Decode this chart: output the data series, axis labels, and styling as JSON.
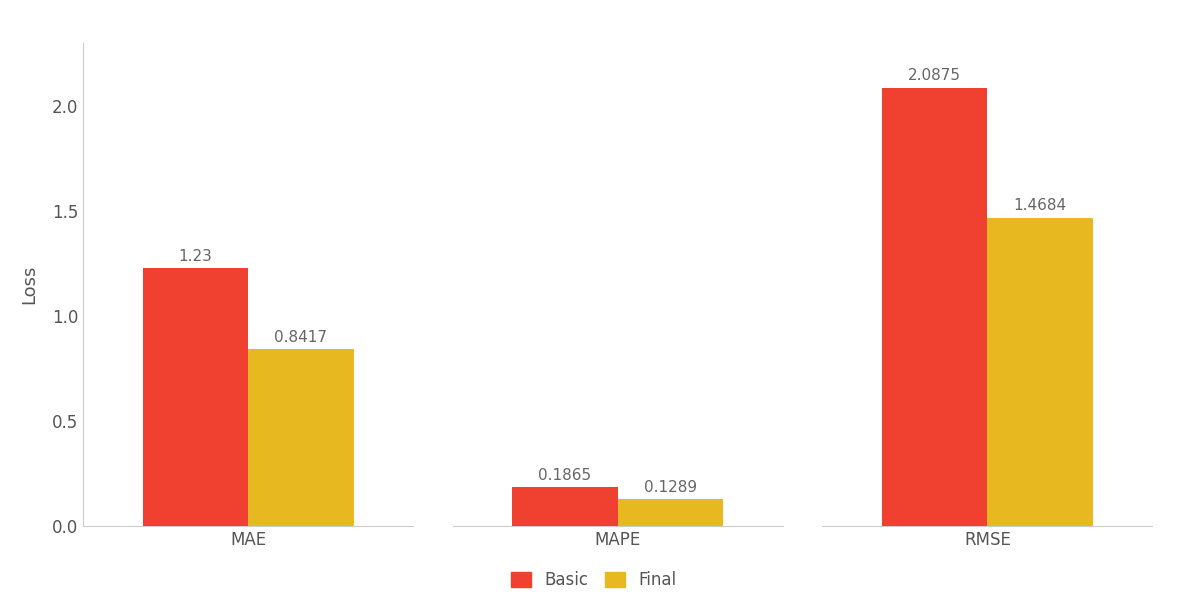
{
  "categories": [
    "MAE",
    "MAPE",
    "RMSE"
  ],
  "basic_values": [
    1.23,
    0.1865,
    2.0875
  ],
  "final_values": [
    0.8417,
    0.1289,
    1.4684
  ],
  "basic_labels": [
    "1.23",
    "0.1865",
    "2.0875"
  ],
  "final_labels": [
    "0.8417",
    "0.1289",
    "1.4684"
  ],
  "basic_color": "#F04030",
  "final_color": "#E8B820",
  "background_color": "#FFFFFF",
  "ylabel": "Loss",
  "legend_labels": [
    "Basic",
    "Final"
  ],
  "bar_width": 0.48,
  "ylim": [
    0,
    2.3
  ],
  "yticks": [
    0.0,
    0.5,
    1.0,
    1.5,
    2.0
  ],
  "annotation_color": "#666666",
  "annotation_fontsize": 11,
  "axis_label_fontsize": 13,
  "tick_fontsize": 12,
  "legend_fontsize": 12,
  "spine_color": "#CCCCCC"
}
